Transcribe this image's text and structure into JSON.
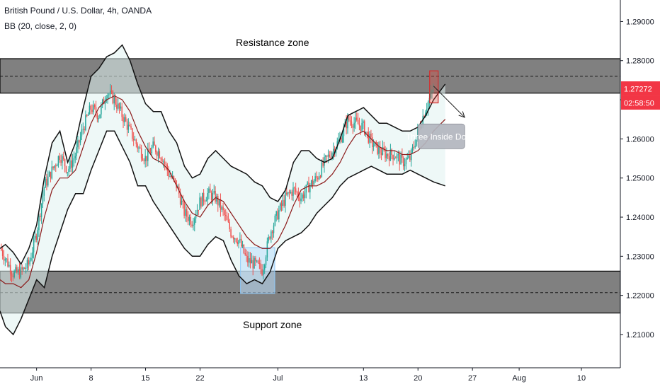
{
  "header": {
    "title": "British Pound / U.S. Dollar, 4h, OANDA",
    "indicator": "BB (20, close, 2, 0)"
  },
  "annotations": {
    "resistance": "Resistance zone",
    "support": "Support zone",
    "pattern": "Three Inside Down"
  },
  "price_tags": {
    "last_price": "1.27272",
    "countdown": "02:58:50"
  },
  "colors": {
    "bull": "#26a69a",
    "bear": "#ef5350",
    "band_fill": "#e0f2f1",
    "basis": "#8b1a1a",
    "zone": "#808080",
    "highlight_blue": "#bbdefb",
    "pattern_red": "#f44336",
    "tag_red": "#f23645",
    "pattern_label_bg": "#b2b5be"
  },
  "chart_data": {
    "type": "candlestick",
    "title": "British Pound / U.S. Dollar, 4h, OANDA",
    "y_axis": {
      "range": [
        1.2015,
        1.2955
      ],
      "ticks": [
        "1.21000",
        "1.22000",
        "1.23000",
        "1.24000",
        "1.25000",
        "1.26000",
        "1.27000",
        "1.28000",
        "1.29000"
      ],
      "tick_values": [
        1.21,
        1.22,
        1.23,
        1.24,
        1.25,
        1.26,
        1.27,
        1.28,
        1.29
      ]
    },
    "x_axis": {
      "ticks": [
        "Jun",
        "8",
        "15",
        "22",
        "Jul",
        "13",
        "20",
        "27",
        "Aug",
        "10"
      ],
      "tick_days": [
        1,
        8,
        15,
        22,
        32,
        43,
        50,
        57,
        63,
        71
      ],
      "range_days": [
        -3.7,
        76
      ]
    },
    "zones": [
      {
        "label": "Resistance zone",
        "low": 1.2717,
        "high": 1.2805,
        "mid": 1.276
      },
      {
        "label": "Support zone",
        "low": 1.2155,
        "high": 1.2262,
        "mid": 1.2207
      }
    ],
    "bollinger": {
      "period": 20,
      "stddev": 2,
      "x": [
        -3.7,
        -3,
        -2,
        -1,
        0,
        1,
        2,
        3,
        4,
        5,
        6,
        7,
        8,
        9,
        10,
        11,
        12,
        13,
        14,
        15,
        16,
        17,
        18,
        19,
        20,
        21,
        22,
        23,
        24,
        25,
        26,
        27,
        28,
        29,
        30,
        31,
        32,
        33,
        34,
        35,
        36,
        37,
        38,
        39,
        40,
        41,
        42,
        43,
        44,
        45,
        46,
        47,
        48,
        49,
        50,
        51,
        52,
        53.5
      ],
      "upper": [
        1.232,
        1.233,
        1.231,
        1.228,
        1.232,
        1.238,
        1.25,
        1.259,
        1.262,
        1.254,
        1.259,
        1.268,
        1.276,
        1.278,
        1.281,
        1.282,
        1.284,
        1.28,
        1.274,
        1.269,
        1.267,
        1.267,
        1.262,
        1.259,
        1.253,
        1.25,
        1.251,
        1.255,
        1.257,
        1.255,
        1.253,
        1.252,
        1.251,
        1.249,
        1.248,
        1.245,
        1.244,
        1.247,
        1.254,
        1.257,
        1.257,
        1.255,
        1.254,
        1.255,
        1.26,
        1.266,
        1.267,
        1.268,
        1.266,
        1.264,
        1.264,
        1.263,
        1.262,
        1.262,
        1.263,
        1.266,
        1.27,
        1.274
      ],
      "basis": [
        1.224,
        1.223,
        1.223,
        1.222,
        1.224,
        1.231,
        1.24,
        1.247,
        1.25,
        1.25,
        1.252,
        1.258,
        1.264,
        1.268,
        1.27,
        1.271,
        1.27,
        1.267,
        1.262,
        1.258,
        1.255,
        1.254,
        1.252,
        1.248,
        1.244,
        1.241,
        1.24,
        1.243,
        1.245,
        1.244,
        1.241,
        1.238,
        1.235,
        1.233,
        1.232,
        1.232,
        1.234,
        1.238,
        1.243,
        1.247,
        1.248,
        1.248,
        1.249,
        1.251,
        1.254,
        1.258,
        1.261,
        1.262,
        1.26,
        1.258,
        1.257,
        1.257,
        1.256,
        1.256,
        1.257,
        1.259,
        1.262,
        1.265
      ],
      "lower": [
        1.216,
        1.212,
        1.21,
        1.214,
        1.219,
        1.224,
        1.222,
        1.23,
        1.236,
        1.242,
        1.246,
        1.246,
        1.252,
        1.257,
        1.262,
        1.262,
        1.258,
        1.254,
        1.248,
        1.248,
        1.244,
        1.241,
        1.238,
        1.235,
        1.232,
        1.23,
        1.23,
        1.233,
        1.235,
        1.234,
        1.229,
        1.225,
        1.223,
        1.224,
        1.223,
        1.226,
        1.232,
        1.234,
        1.235,
        1.236,
        1.238,
        1.241,
        1.243,
        1.245,
        1.248,
        1.25,
        1.251,
        1.252,
        1.253,
        1.252,
        1.251,
        1.251,
        1.251,
        1.252,
        1.251,
        1.25,
        1.249,
        1.248
      ]
    },
    "closes": {
      "x": [
        -3.7,
        -2,
        -1,
        0,
        1,
        2,
        3,
        4,
        5,
        6,
        7,
        8,
        9,
        10,
        11,
        12,
        13,
        14,
        15,
        16,
        17,
        18,
        19,
        20,
        21,
        22,
        23,
        24,
        25,
        26,
        27,
        28,
        29,
        30,
        31,
        32,
        33,
        34,
        35,
        36,
        37,
        38,
        39,
        40,
        41,
        42,
        43,
        44,
        45,
        46,
        47,
        48,
        49,
        50,
        51,
        52
      ],
      "y": [
        1.2322,
        1.2255,
        1.226,
        1.228,
        1.236,
        1.248,
        1.252,
        1.256,
        1.252,
        1.256,
        1.263,
        1.268,
        1.266,
        1.272,
        1.27,
        1.266,
        1.262,
        1.258,
        1.255,
        1.258,
        1.256,
        1.251,
        1.248,
        1.241,
        1.239,
        1.244,
        1.246,
        1.245,
        1.241,
        1.236,
        1.234,
        1.229,
        1.228,
        1.2265,
        1.236,
        1.241,
        1.245,
        1.247,
        1.245,
        1.248,
        1.25,
        1.254,
        1.257,
        1.26,
        1.265,
        1.264,
        1.263,
        1.259,
        1.257,
        1.256,
        1.256,
        1.254,
        1.255,
        1.262,
        1.268,
        1.2727
      ]
    },
    "highlights": [
      {
        "x0": 27.2,
        "x1": 31.6,
        "low": 1.2205,
        "high": 1.2322
      },
      {
        "x0": 51.5,
        "x1": 52.6,
        "low": 1.2692,
        "high": 1.2774
      }
    ],
    "callout": {
      "label": "Three Inside Down",
      "x0": 50.0,
      "x1": 56.0,
      "low": 1.2575,
      "high": 1.2638,
      "arrow_from": [
        52.0,
        1.2735
      ],
      "arrow_to": [
        56.0,
        1.2655
      ]
    }
  }
}
